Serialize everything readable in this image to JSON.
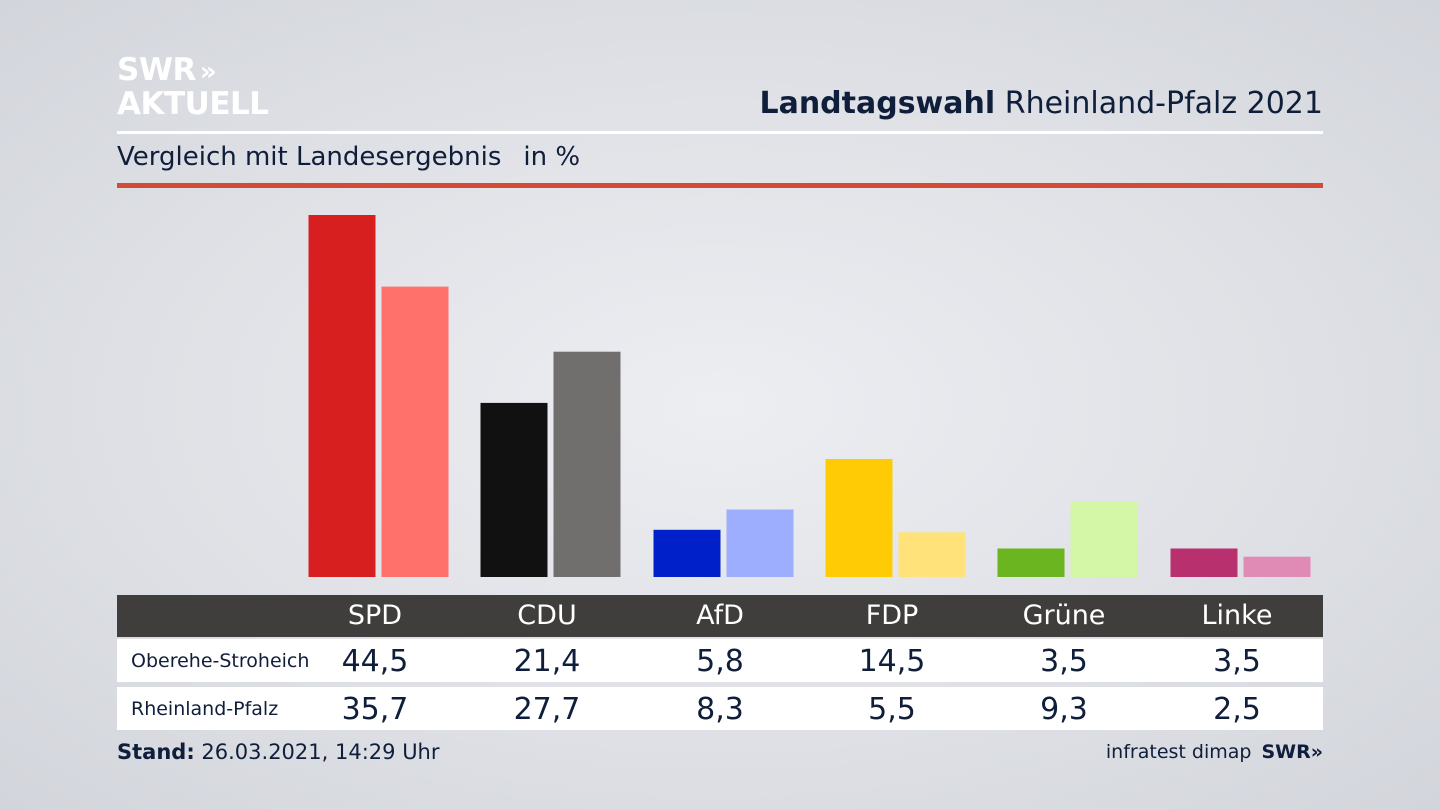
{
  "brand": {
    "line1": "SWR",
    "arrows": "»",
    "line2": "AKTUELL"
  },
  "header": {
    "title_bold": "Landtagswahl",
    "title_rest": "Rheinland-Pfalz 2021"
  },
  "subtitle": {
    "text": "Vergleich mit Landesergebnis",
    "unit": "in %"
  },
  "colors": {
    "accent_rule": "#d14b37",
    "table_header": "#3f3e3c"
  },
  "chart_data": {
    "type": "bar",
    "categories": [
      "SPD",
      "CDU",
      "AfD",
      "FDP",
      "Grüne",
      "Linke"
    ],
    "series": [
      {
        "name": "Oberehe-Stroheich",
        "values": [
          44.5,
          21.4,
          5.8,
          14.5,
          3.5,
          3.5
        ],
        "colors": [
          "#d71f1f",
          "#111111",
          "#0021c9",
          "#ffcb05",
          "#6ab520",
          "#b8306e"
        ]
      },
      {
        "name": "Rheinland-Pfalz",
        "values": [
          35.7,
          27.7,
          8.3,
          5.5,
          9.3,
          2.5
        ],
        "colors": [
          "#ff716a",
          "#706f6d",
          "#9daeff",
          "#ffe37a",
          "#d4f6a7",
          "#e08bb5"
        ]
      }
    ],
    "ylim": [
      0,
      44.5
    ],
    "grid": false,
    "legend": "none"
  },
  "table": {
    "rows": [
      {
        "label": "Oberehe-Stroheich",
        "values": [
          "44,5",
          "21,4",
          "5,8",
          "14,5",
          "3,5",
          "3,5"
        ]
      },
      {
        "label": "Rheinland-Pfalz",
        "values": [
          "35,7",
          "27,7",
          "8,3",
          "5,5",
          "9,3",
          "2,5"
        ]
      }
    ]
  },
  "footer": {
    "stand_label": "Stand:",
    "stand_value": "26.03.2021, 14:29 Uhr"
  },
  "source": {
    "text": "infratest dimap",
    "logo": "SWR»"
  }
}
